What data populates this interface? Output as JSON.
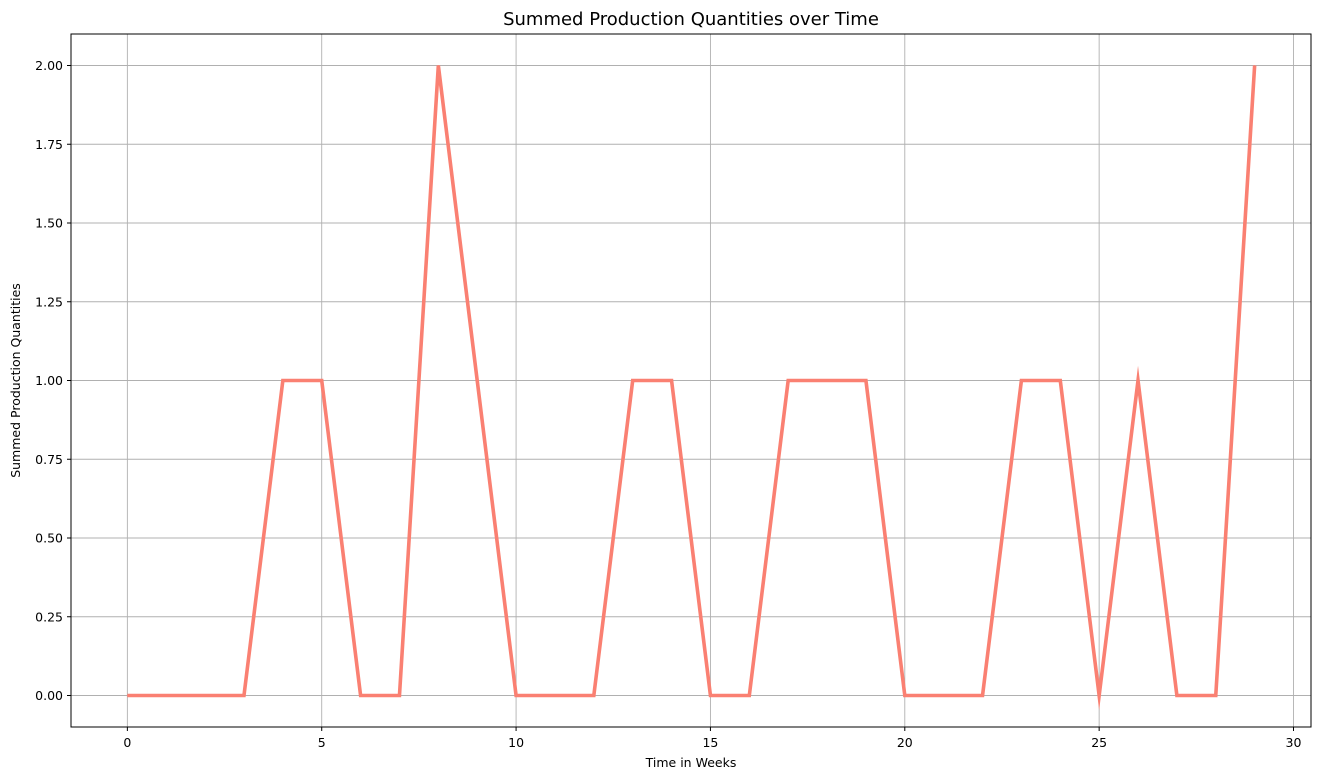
{
  "chart_data": {
    "type": "line",
    "title": "Summed Production Quantities over Time",
    "xlabel": "Time in Weeks",
    "ylabel": "Summed Production Quantities",
    "xlim": [
      -1.45,
      30.45
    ],
    "ylim": [
      -0.1,
      2.1
    ],
    "xticks": [
      0,
      5,
      10,
      15,
      20,
      25,
      30
    ],
    "xtick_labels": [
      "0",
      "5",
      "10",
      "15",
      "20",
      "25",
      "30"
    ],
    "yticks": [
      0.0,
      0.25,
      0.5,
      0.75,
      1.0,
      1.25,
      1.5,
      1.75,
      2.0
    ],
    "ytick_labels": [
      "0.00",
      "0.25",
      "0.50",
      "0.75",
      "1.00",
      "1.25",
      "1.50",
      "1.75",
      "2.00"
    ],
    "grid": true,
    "series": [
      {
        "color": "#fa8072",
        "x": [
          0,
          1,
          2,
          3,
          4,
          5,
          6,
          7,
          8,
          9,
          10,
          11,
          12,
          13,
          14,
          15,
          16,
          17,
          18,
          19,
          20,
          21,
          22,
          23,
          24,
          25,
          26,
          27,
          28,
          29
        ],
        "y": [
          0,
          0,
          0,
          0,
          1,
          1,
          0,
          0,
          2,
          1,
          0,
          0,
          0,
          1,
          1,
          0,
          0,
          1,
          1,
          1,
          0,
          0,
          0,
          1,
          1,
          0,
          1,
          0,
          0,
          2
        ]
      }
    ]
  }
}
